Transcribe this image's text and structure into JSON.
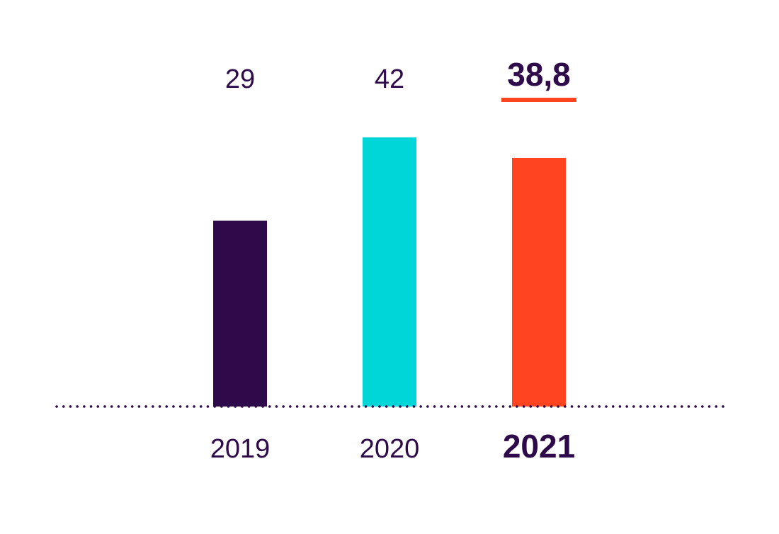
{
  "chart_data": {
    "type": "bar",
    "categories": [
      "2019",
      "2020",
      "2021"
    ],
    "values": [
      29,
      42,
      38.8
    ],
    "value_labels": [
      "29",
      "42",
      "38,8"
    ],
    "highlight_index": 2,
    "ylim": [
      0,
      42
    ],
    "grid": false,
    "baseline": "dotted",
    "bar_colors": [
      "#2e0a4a",
      "#00d6d8",
      "#ff4420"
    ],
    "text_color": "#2e0a4a",
    "highlight_underline_color": "#ff4420"
  }
}
